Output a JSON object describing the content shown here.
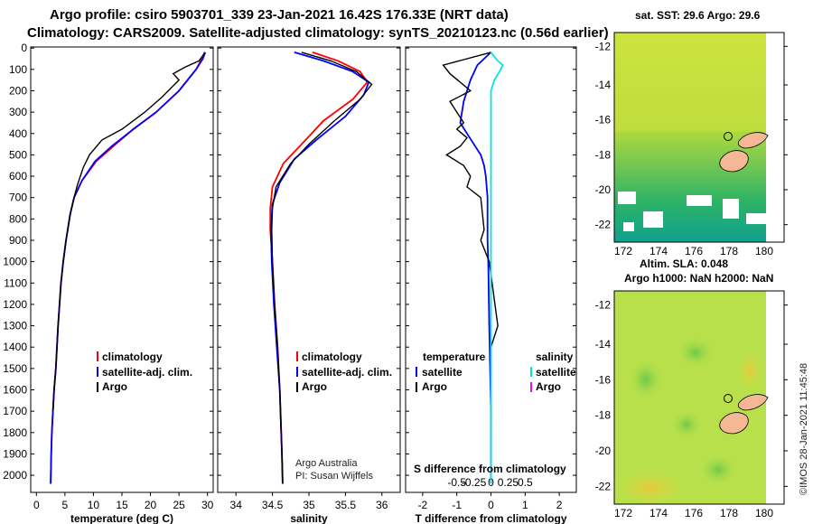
{
  "title_line1": "Argo profile: csiro 5903701_339 23-Jan-2021 16.42S 176.33E (NRT data)",
  "title_line2": "Climatology: CARS2009. Satellite-adjusted climatology: synTS_20210123.nc (0.56d earlier)",
  "colors": {
    "climatology": "#ff0000",
    "satellite": "#0000ff",
    "argo": "#000000",
    "satellite_s": "#00e5e5",
    "argo_s": "#ff00ff"
  },
  "chart_data": [
    {
      "type": "line",
      "id": "temperature",
      "xlabel": "temperature (deg C)",
      "xlim": [
        -1,
        31
      ],
      "ylim": [
        2080,
        -5
      ],
      "xticks": [
        0,
        5,
        10,
        15,
        20,
        25,
        30
      ],
      "xtick_labels": [
        "0",
        "5",
        "10",
        "15",
        "20",
        "25",
        "30"
      ],
      "yticks": [
        0,
        100,
        200,
        300,
        400,
        500,
        600,
        700,
        800,
        900,
        1000,
        1100,
        1200,
        1300,
        1400,
        1500,
        1600,
        1700,
        1800,
        1900,
        2000
      ],
      "ytick_labels": [
        "0",
        "100",
        "200",
        "300",
        "400",
        "500",
        "600",
        "700",
        "800",
        "900",
        "1000",
        "1100",
        "1200",
        "1300",
        "1400",
        "1500",
        "1600",
        "1700",
        "1800",
        "1900",
        "2000"
      ],
      "legend": [
        "climatology",
        "satellite-adj. clim.",
        "Argo"
      ],
      "series": [
        {
          "name": "climatology",
          "color": "#ff0000",
          "x": [
            29.5,
            29,
            28,
            25,
            21,
            17,
            13.5,
            10.5,
            8,
            6.6,
            5.9,
            5.2,
            4.7,
            4.3,
            3.8,
            3.4,
            3.1,
            2.9,
            2.7,
            2.6,
            2.5
          ],
          "y": [
            20,
            50,
            100,
            200,
            300,
            380,
            460,
            530,
            620,
            700,
            780,
            900,
            1000,
            1100,
            1300,
            1500,
            1600,
            1700,
            1800,
            1900,
            2040
          ]
        },
        {
          "name": "satellite-adj. clim.",
          "color": "#0000ff",
          "x": [
            29.6,
            29.2,
            28,
            25,
            21,
            17,
            13.2,
            10.3,
            8,
            6.6,
            5.9,
            5.2,
            4.7,
            4.3,
            3.8,
            3.4,
            3.1,
            2.9,
            2.7,
            2.6,
            2.5
          ],
          "y": [
            20,
            50,
            100,
            200,
            300,
            380,
            460,
            530,
            620,
            700,
            780,
            900,
            1000,
            1100,
            1300,
            1500,
            1600,
            1700,
            1800,
            1900,
            2040
          ]
        },
        {
          "name": "Argo",
          "color": "#000000",
          "x": [
            29.6,
            28.5,
            26,
            24,
            25,
            22,
            19,
            15,
            11.5,
            9.3,
            8.2,
            7.2,
            6.6,
            5.9,
            5.2,
            4.7,
            4.3,
            3.8,
            3.4,
            3.1,
            2.9
          ],
          "y": [
            20,
            60,
            90,
            120,
            150,
            230,
            300,
            380,
            430,
            500,
            560,
            640,
            700,
            780,
            900,
            1000,
            1100,
            1300,
            1500,
            1600,
            1700
          ]
        }
      ]
    },
    {
      "type": "line",
      "id": "salinity",
      "xlabel": "salinity",
      "xlim": [
        33.75,
        36.25
      ],
      "ylim": [
        2080,
        -5
      ],
      "xticks": [
        34,
        34.5,
        35,
        35.5,
        36
      ],
      "xtick_labels": [
        "34",
        "34.5",
        "35",
        "35.5",
        "36"
      ],
      "legend": [
        "climatology",
        "satellite-adj. clim.",
        "Argo"
      ],
      "series": [
        {
          "name": "climatology",
          "color": "#ff0000",
          "x": [
            35.05,
            35.4,
            35.7,
            35.8,
            35.6,
            35.2,
            34.9,
            34.65,
            34.5,
            34.47,
            34.47,
            34.5,
            34.53,
            34.57,
            34.6,
            34.62,
            34.63,
            34.64
          ],
          "y": [
            20,
            60,
            110,
            160,
            240,
            340,
            450,
            540,
            650,
            750,
            850,
            1000,
            1200,
            1400,
            1600,
            1800,
            1900,
            2040
          ]
        },
        {
          "name": "satellite-adj. clim.",
          "color": "#0000ff",
          "x": [
            34.8,
            35.2,
            35.6,
            35.82,
            35.75,
            35.5,
            35.1,
            34.8,
            34.6,
            34.5,
            34.48,
            34.49,
            34.52,
            34.56,
            34.6,
            34.62,
            34.63,
            34.64
          ],
          "y": [
            20,
            60,
            110,
            160,
            220,
            320,
            430,
            520,
            630,
            730,
            850,
            1000,
            1200,
            1400,
            1600,
            1800,
            1900,
            2040
          ]
        },
        {
          "name": "Argo",
          "color": "#000000",
          "x": [
            34.9,
            35.3,
            35.65,
            35.86,
            35.7,
            35.35,
            35.0,
            34.75,
            34.55,
            34.5,
            34.49,
            34.5,
            34.53,
            34.57,
            34.6,
            34.62,
            34.63,
            34.64
          ],
          "y": [
            20,
            60,
            110,
            170,
            240,
            340,
            450,
            540,
            650,
            750,
            850,
            1000,
            1200,
            1400,
            1600,
            1800,
            1900,
            2040
          ]
        }
      ]
    },
    {
      "type": "line",
      "id": "difference",
      "xlabel": "T difference from climatology",
      "xlabel2": "S difference from climatology",
      "xlim": [
        -2.5,
        2.5
      ],
      "ylim": [
        2080,
        -5
      ],
      "xticks": [
        -2,
        -1,
        0,
        1,
        2
      ],
      "xtick_labels": [
        "-2",
        "-1",
        "0",
        "1",
        "2"
      ],
      "sticks": [
        -0.5,
        -0.25,
        0,
        0.25,
        0.5
      ],
      "stick_labels": [
        "-0.5",
        "-0.25",
        "0",
        "0.25",
        "0.5"
      ],
      "legend_t": {
        "title": "temperature",
        "items": [
          "satellite",
          "Argo"
        ]
      },
      "legend_s": {
        "title": "salinity",
        "items": [
          "satellite",
          "Argo"
        ]
      },
      "series": [
        {
          "name": "T satellite",
          "color": "#0000ff",
          "x": [
            0,
            -0.4,
            -0.6,
            -0.8,
            -0.9,
            -0.7,
            -0.5,
            -0.3,
            -0.2,
            -0.15,
            -0.1,
            -0.1,
            -0.1,
            -0.08,
            -0.05,
            0,
            0
          ],
          "y": [
            20,
            80,
            150,
            250,
            350,
            400,
            450,
            500,
            550,
            600,
            700,
            800,
            900,
            1000,
            1300,
            1700,
            2040
          ]
        },
        {
          "name": "T Argo",
          "color": "#000000",
          "x": [
            0,
            -1.4,
            -1.2,
            -0.9,
            -0.6,
            -1.2,
            -1.0,
            -0.8,
            -1.0,
            -0.7,
            -0.9,
            -1.3,
            -0.8,
            -0.6,
            -0.7,
            -0.3,
            -0.2,
            -0.3,
            -0.05,
            0.2,
            0,
            0
          ],
          "y": [
            20,
            80,
            120,
            160,
            200,
            250,
            300,
            350,
            380,
            420,
            460,
            500,
            550,
            600,
            650,
            700,
            850,
            900,
            1000,
            1300,
            1400,
            1750
          ]
        },
        {
          "name": "S satellite",
          "color": "#00e5e5",
          "x": [
            0,
            0.2,
            0.35,
            0.25,
            0.1,
            0,
            0,
            0,
            0,
            0,
            0,
            0,
            0,
            0,
            0
          ],
          "y": [
            20,
            60,
            80,
            110,
            150,
            200,
            300,
            400,
            500,
            600,
            700,
            900,
            1200,
            1600,
            2040
          ]
        }
      ]
    }
  ],
  "map_sst": {
    "title": "sat. SST: 29.6  Argo: 29.6",
    "yticks": [
      "-12",
      "-14",
      "-16",
      "-18",
      "-20",
      "-22"
    ],
    "xticks": [
      "172",
      "174",
      "176",
      "178",
      "180"
    ]
  },
  "map_sla": {
    "title_line1": "Altim. SLA: 0.048",
    "title_line2": "Argo h1000: NaN h2000: NaN",
    "yticks": [
      "-12",
      "-14",
      "-16",
      "-18",
      "-20",
      "-22"
    ],
    "xticks": [
      "172",
      "174",
      "176",
      "178",
      "180"
    ]
  },
  "footer": {
    "credit1": "Argo Australia",
    "credit2": "PI: Susan Wijffels",
    "stamp": "©IMOS 28-Jan-2021 11:45:48"
  }
}
